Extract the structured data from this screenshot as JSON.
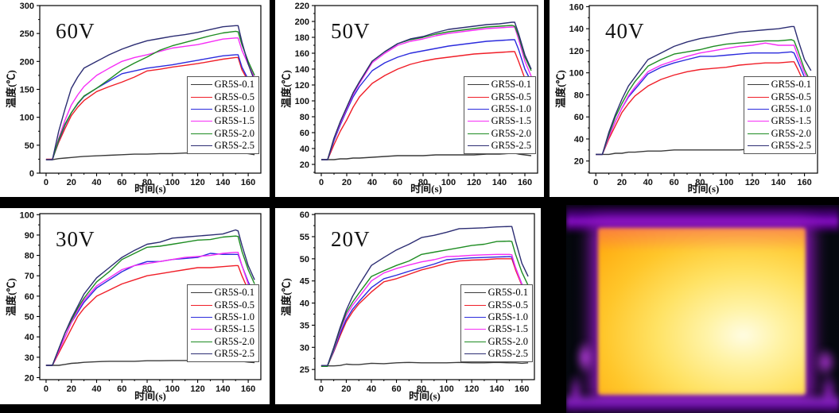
{
  "figure_bg": "#000000",
  "thermal": {
    "background_color": "#05080e",
    "glow_color": "#9018c0",
    "hot_edge_color": "#ff7d00",
    "hot_core_color": "#fffce2"
  },
  "chart_data": [
    {
      "type": "line",
      "title": "60V",
      "xlabel": "时间(s)",
      "ylabel": "温度(℃)",
      "xlim": [
        -5,
        170
      ],
      "ylim": [
        0,
        300
      ],
      "xticks": [
        0,
        20,
        40,
        60,
        80,
        100,
        120,
        140,
        160
      ],
      "yticks": [
        0,
        50,
        100,
        150,
        200,
        250,
        300
      ],
      "x_minor_step": 10,
      "y_minor_step": 25,
      "grid": false,
      "legend_position": "right-center",
      "x": [
        0,
        5,
        10,
        15,
        20,
        25,
        30,
        40,
        50,
        60,
        70,
        80,
        90,
        100,
        110,
        120,
        130,
        140,
        150,
        152,
        155,
        160,
        165
      ],
      "series": [
        {
          "name": "GR5S-0.1",
          "color": "#3a3a3a",
          "y": [
            24,
            24,
            26,
            27,
            28,
            29,
            30,
            31,
            32,
            33,
            34,
            34,
            35,
            35,
            36,
            36,
            36,
            37,
            37,
            37,
            36,
            35,
            33
          ]
        },
        {
          "name": "GR5S-0.5",
          "color": "#f01e28",
          "y": [
            25,
            25,
            55,
            80,
            103,
            118,
            130,
            146,
            155,
            163,
            172,
            183,
            186,
            190,
            193,
            196,
            200,
            204,
            207,
            207,
            185,
            165,
            148
          ]
        },
        {
          "name": "GR5S-1.0",
          "color": "#2b2bdd",
          "y": [
            24,
            24,
            58,
            86,
            108,
            124,
            137,
            152,
            165,
            178,
            183,
            188,
            191,
            194,
            198,
            202,
            206,
            210,
            212,
            212,
            190,
            168,
            152
          ]
        },
        {
          "name": "GR5S-1.5",
          "color": "#f62df6",
          "y": [
            24,
            24,
            62,
            95,
            122,
            140,
            155,
            175,
            188,
            200,
            207,
            212,
            218,
            224,
            227,
            230,
            235,
            240,
            242,
            242,
            220,
            195,
            170
          ]
        },
        {
          "name": "GR5S-2.0",
          "color": "#1e8c22",
          "y": [
            24,
            24,
            60,
            88,
            108,
            125,
            138,
            152,
            168,
            185,
            197,
            208,
            220,
            228,
            234,
            240,
            246,
            251,
            254,
            253,
            230,
            200,
            175
          ]
        },
        {
          "name": "GR5S-2.5",
          "color": "#2c2d73",
          "y": [
            24,
            24,
            75,
            115,
            152,
            172,
            188,
            200,
            212,
            222,
            230,
            237,
            241,
            245,
            248,
            252,
            257,
            262,
            264,
            264,
            235,
            195,
            165
          ]
        }
      ]
    },
    {
      "type": "line",
      "title": "50V",
      "xlabel": "时间(s)",
      "ylabel": "温度(℃)",
      "xlim": [
        -5,
        170
      ],
      "ylim": [
        9,
        220
      ],
      "xticks": [
        0,
        20,
        40,
        60,
        80,
        100,
        120,
        140,
        160
      ],
      "yticks": [
        20,
        40,
        60,
        80,
        100,
        120,
        140,
        160,
        180,
        200,
        220
      ],
      "x_minor_step": 10,
      "y_minor_step": 10,
      "grid": false,
      "legend_position": "right-center",
      "x": [
        0,
        5,
        10,
        15,
        20,
        25,
        30,
        40,
        50,
        60,
        70,
        80,
        90,
        100,
        110,
        120,
        130,
        140,
        150,
        152,
        155,
        160,
        165
      ],
      "series": [
        {
          "name": "GR5S-0.1",
          "color": "#3a3a3a",
          "y": [
            26,
            26,
            26,
            27,
            27,
            28,
            28,
            29,
            30,
            31,
            31,
            31,
            32,
            32,
            32,
            32,
            33,
            33,
            34,
            34,
            33,
            32,
            31
          ]
        },
        {
          "name": "GR5S-0.5",
          "color": "#f01e28",
          "y": [
            26,
            26,
            45,
            62,
            76,
            92,
            105,
            122,
            132,
            140,
            146,
            150,
            153,
            155,
            157,
            159,
            160,
            161,
            162,
            162,
            150,
            128,
            113
          ]
        },
        {
          "name": "GR5S-1.0",
          "color": "#2b2bdd",
          "y": [
            26,
            26,
            50,
            70,
            88,
            105,
            118,
            138,
            148,
            155,
            160,
            163,
            166,
            169,
            171,
            173,
            175,
            176,
            177,
            177,
            165,
            140,
            124
          ]
        },
        {
          "name": "GR5S-1.5",
          "color": "#f62df6",
          "y": [
            26,
            26,
            52,
            72,
            90,
            108,
            122,
            148,
            160,
            170,
            175,
            178,
            182,
            185,
            187,
            189,
            191,
            192,
            193,
            193,
            178,
            150,
            131
          ]
        },
        {
          "name": "GR5S-2.0",
          "color": "#1e8c22",
          "y": [
            26,
            26,
            53,
            74,
            92,
            110,
            124,
            150,
            162,
            172,
            177,
            180,
            184,
            187,
            189,
            191,
            193,
            194,
            195,
            194,
            182,
            155,
            138
          ]
        },
        {
          "name": "GR5S-2.5",
          "color": "#2c2d73",
          "y": [
            26,
            26,
            53,
            74,
            92,
            110,
            124,
            150,
            162,
            172,
            178,
            181,
            186,
            190,
            192,
            194,
            196,
            197,
            199,
            199,
            185,
            158,
            140
          ]
        }
      ]
    },
    {
      "type": "line",
      "title": "40V",
      "xlabel": "时间(s)",
      "ylabel": "温度(℃)",
      "xlim": [
        -5,
        170
      ],
      "ylim": [
        9,
        161
      ],
      "xticks": [
        0,
        20,
        40,
        60,
        80,
        100,
        120,
        140,
        160
      ],
      "yticks": [
        20,
        40,
        60,
        80,
        100,
        120,
        140,
        160
      ],
      "x_minor_step": 10,
      "y_minor_step": 10,
      "grid": false,
      "legend_position": "right-center",
      "x": [
        0,
        5,
        10,
        15,
        20,
        25,
        30,
        40,
        50,
        60,
        70,
        80,
        90,
        100,
        110,
        120,
        130,
        140,
        150,
        152,
        155,
        160,
        165
      ],
      "series": [
        {
          "name": "GR5S-0.1",
          "color": "#3a3a3a",
          "y": [
            26,
            26,
            26,
            27,
            27,
            28,
            28,
            29,
            29,
            30,
            30,
            30,
            30,
            30,
            30,
            31,
            31,
            31,
            30,
            30,
            30,
            29,
            29
          ]
        },
        {
          "name": "GR5S-0.5",
          "color": "#f01e28",
          "y": [
            26,
            26,
            40,
            52,
            64,
            72,
            79,
            88,
            94,
            98,
            101,
            103,
            104,
            105,
            107,
            108,
            109,
            109,
            110,
            110,
            103,
            90,
            80
          ]
        },
        {
          "name": "GR5S-1.0",
          "color": "#2b2bdd",
          "y": [
            26,
            26,
            42,
            56,
            68,
            78,
            85,
            99,
            105,
            109,
            112,
            115,
            115,
            116,
            117,
            118,
            118,
            118,
            119,
            118,
            110,
            96,
            87
          ]
        },
        {
          "name": "GR5S-1.5",
          "color": "#f62df6",
          "y": [
            26,
            26,
            42,
            56,
            68,
            79,
            87,
            101,
            107,
            111,
            115,
            118,
            120,
            122,
            124,
            125,
            127,
            125,
            125,
            125,
            115,
            100,
            89
          ]
        },
        {
          "name": "GR5S-2.0",
          "color": "#1e8c22",
          "y": [
            26,
            26,
            44,
            60,
            72,
            83,
            92,
            106,
            112,
            117,
            119,
            121,
            124,
            126,
            127,
            128,
            129,
            129,
            130,
            129,
            120,
            103,
            91
          ]
        },
        {
          "name": "GR5S-2.5",
          "color": "#2c2d73",
          "y": [
            26,
            26,
            46,
            62,
            76,
            88,
            96,
            112,
            118,
            124,
            128,
            131,
            133,
            135,
            137,
            138,
            139,
            140,
            142,
            142,
            130,
            112,
            102
          ]
        }
      ]
    },
    {
      "type": "line",
      "title": "30V",
      "xlabel": "时间(s)",
      "ylabel": "温度(℃)",
      "xlim": [
        -5,
        170
      ],
      "ylim": [
        19,
        100.5
      ],
      "xticks": [
        0,
        20,
        40,
        60,
        80,
        100,
        120,
        140,
        160
      ],
      "yticks": [
        20,
        30,
        40,
        50,
        60,
        70,
        80,
        90,
        100
      ],
      "x_minor_step": 10,
      "y_minor_step": 5,
      "grid": false,
      "legend_position": "right-center",
      "x": [
        0,
        5,
        10,
        15,
        20,
        25,
        30,
        40,
        50,
        60,
        70,
        80,
        90,
        100,
        110,
        120,
        130,
        140,
        150,
        152,
        155,
        160,
        165
      ],
      "series": [
        {
          "name": "GR5S-0.1",
          "color": "#3a3a3a",
          "y": [
            26,
            26,
            26,
            26.5,
            27,
            27.2,
            27.5,
            27.8,
            28,
            28,
            28,
            28.3,
            28.3,
            28.4,
            28.4,
            28.4,
            28.5,
            28.5,
            28.6,
            28.5,
            28,
            27.6,
            27.4
          ]
        },
        {
          "name": "GR5S-0.5",
          "color": "#f01e28",
          "y": [
            26,
            26,
            32,
            38,
            44,
            50,
            54,
            60,
            63,
            66,
            68,
            70,
            71,
            72,
            73,
            74,
            74,
            74.5,
            75,
            75,
            70,
            63,
            57.5
          ]
        },
        {
          "name": "GR5S-1.0",
          "color": "#2b2bdd",
          "y": [
            26,
            26,
            33,
            40,
            47,
            52,
            57,
            64,
            68,
            72,
            75,
            77,
            77,
            78,
            78.5,
            79,
            81,
            80.5,
            80.5,
            80.5,
            75,
            67,
            61
          ]
        },
        {
          "name": "GR5S-1.5",
          "color": "#f62df6",
          "y": [
            26,
            26,
            33,
            40,
            47,
            53,
            58,
            65,
            69,
            73,
            75,
            76,
            77,
            78,
            79,
            79.5,
            80,
            81,
            81.5,
            81.5,
            75,
            66,
            60.5
          ]
        },
        {
          "name": "GR5S-2.0",
          "color": "#1e8c22",
          "y": [
            26,
            26,
            34,
            42,
            48,
            54,
            59,
            67,
            72,
            78,
            81,
            84,
            84.5,
            85.5,
            86.5,
            87.5,
            87.8,
            89,
            89.5,
            89.3,
            82,
            73,
            66
          ]
        },
        {
          "name": "GR5S-2.5",
          "color": "#2c2d73",
          "y": [
            26,
            26,
            34,
            42,
            49,
            55,
            61,
            69,
            74,
            79,
            82.5,
            85.5,
            86.5,
            88.5,
            89,
            89.5,
            90,
            90.5,
            92.5,
            92,
            85,
            75,
            68
          ]
        }
      ]
    },
    {
      "type": "line",
      "title": "20V",
      "xlabel": "时间(s)",
      "ylabel": "温度(℃)",
      "xlim": [
        -5,
        170
      ],
      "ylim": [
        22.7,
        60.2
      ],
      "xticks": [
        0,
        20,
        40,
        60,
        80,
        100,
        120,
        140,
        160
      ],
      "yticks": [
        25,
        30,
        35,
        40,
        45,
        50,
        55,
        60
      ],
      "x_minor_step": 10,
      "y_minor_step": 2.5,
      "grid": false,
      "legend_position": "right-center",
      "x": [
        0,
        5,
        10,
        15,
        20,
        25,
        30,
        40,
        50,
        60,
        70,
        80,
        90,
        100,
        110,
        120,
        130,
        140,
        150,
        152,
        155,
        160,
        165
      ],
      "series": [
        {
          "name": "GR5S-0.1",
          "color": "#3a3a3a",
          "y": [
            25.8,
            25.8,
            25.8,
            25.9,
            26.2,
            26.1,
            26.1,
            26.4,
            26.3,
            26.5,
            26.6,
            26.5,
            26.5,
            26.5,
            26.6,
            26.5,
            26.5,
            26.6,
            26.5,
            26.5,
            26.5,
            26.4,
            26.5
          ]
        },
        {
          "name": "GR5S-0.5",
          "color": "#f01e28",
          "y": [
            25.8,
            25.8,
            29,
            32.5,
            35.8,
            38,
            39.8,
            42.5,
            44.8,
            45.5,
            46.5,
            47.5,
            48.2,
            49,
            49.5,
            49.7,
            49.8,
            50,
            50,
            50,
            47.5,
            44,
            41.2
          ]
        },
        {
          "name": "GR5S-1.0",
          "color": "#2b2bdd",
          "y": [
            25.8,
            25.8,
            29.2,
            33,
            36.3,
            38.6,
            40.3,
            43.5,
            45.5,
            46.3,
            47.2,
            48,
            48.8,
            49.8,
            50,
            50.2,
            50.3,
            50.4,
            50.5,
            50.4,
            48,
            44.3,
            41.5
          ]
        },
        {
          "name": "GR5S-1.5",
          "color": "#f62df6",
          "y": [
            25.8,
            25.8,
            29.5,
            33.6,
            37.2,
            39.5,
            41.3,
            45,
            46.8,
            47.8,
            48.6,
            49.3,
            49.8,
            50.5,
            50.6,
            50.8,
            50.9,
            51,
            51,
            50.9,
            48,
            44.2,
            41.3
          ]
        },
        {
          "name": "GR5S-2.0",
          "color": "#1e8c22",
          "y": [
            25.7,
            25.7,
            29.7,
            34,
            37.8,
            40.2,
            42.2,
            46,
            47.3,
            48.5,
            49.5,
            51,
            51.5,
            52,
            52.5,
            53,
            53.3,
            53.9,
            54,
            53.9,
            51,
            47,
            44
          ]
        },
        {
          "name": "GR5S-2.5",
          "color": "#2c2d73",
          "y": [
            25.9,
            25.9,
            30,
            34.4,
            38.4,
            41.5,
            44,
            48.5,
            50.3,
            52,
            53.3,
            54.8,
            55.3,
            56,
            56.8,
            56.9,
            57,
            57.2,
            57.3,
            57.3,
            54,
            49,
            46
          ]
        }
      ]
    }
  ]
}
